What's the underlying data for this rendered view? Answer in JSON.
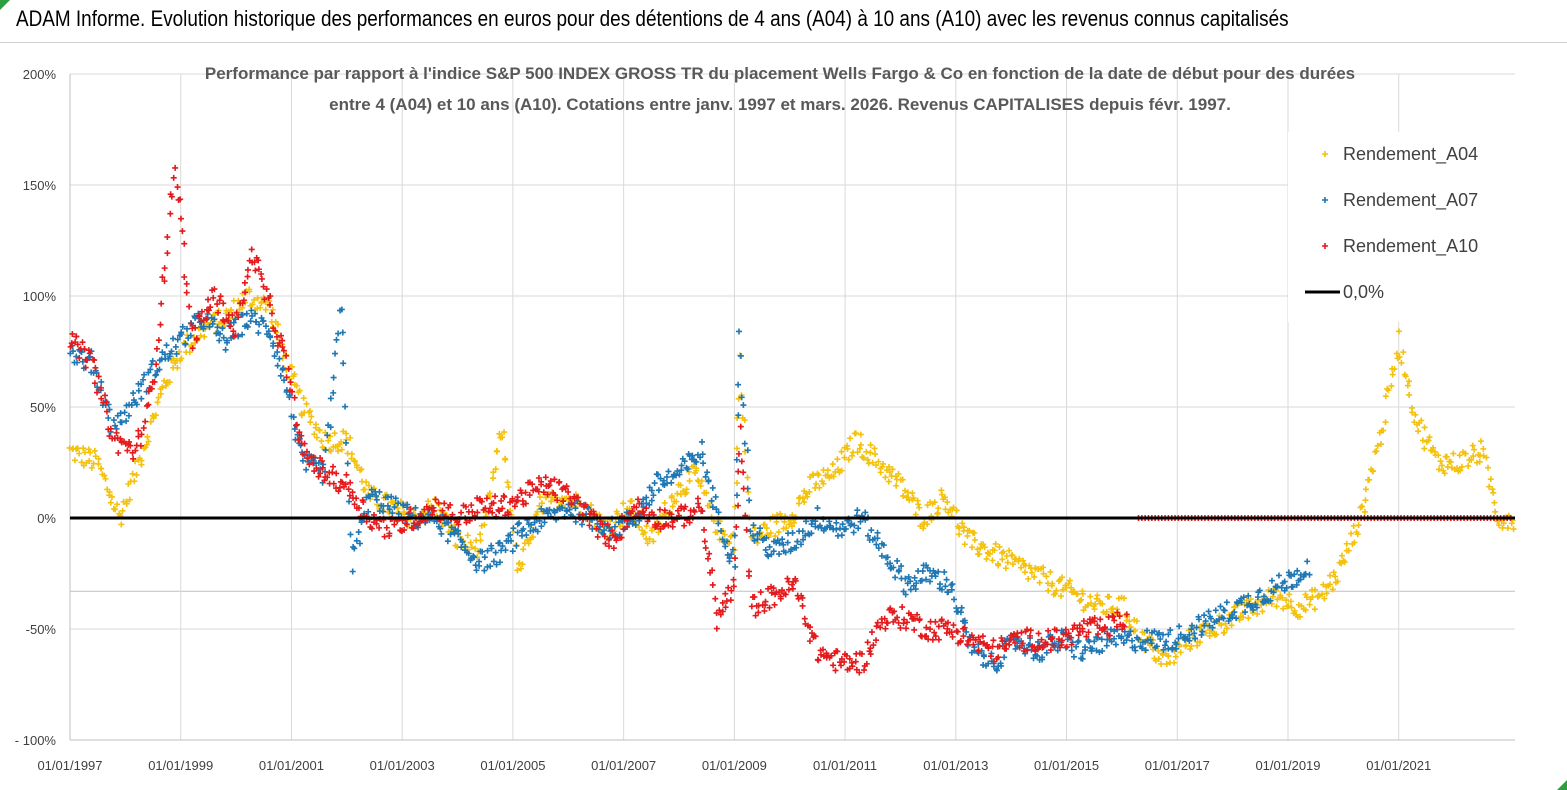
{
  "banner": {
    "title": "ADAM Informe. Evolution historique des performances en euros pour des détentions de 4 ans (A04) à 10 ans (A10) avec les revenus connus capitalisés",
    "background": "#ffffff"
  },
  "chart_data": {
    "type": "scatter",
    "title_line1": "Performance par rapport à l'indice S&P 500 INDEX GROSS TR  du placement Wells Fargo & Co en fonction de la date de début pour des durées",
    "title_line2": "entre 4 (A04) et 10 ans (A10). Cotations entre janv. 1997 et mars. 2026. Revenus CAPITALISES depuis févr. 1997.",
    "x_tick_labels": [
      "01/01/1997",
      "01/01/1999",
      "01/01/2001",
      "01/01/2003",
      "01/01/2005",
      "01/01/2007",
      "01/01/2009",
      "01/01/2011",
      "01/01/2013",
      "01/01/2015",
      "01/01/2017",
      "01/01/2019",
      "01/01/2021"
    ],
    "y_tick_labels": [
      "- 100%",
      "-50%",
      "0%",
      "50%",
      "100%",
      "150%",
      "200%"
    ],
    "ylim": [
      -100,
      200
    ],
    "xlim": [
      1997.0,
      2023.1
    ],
    "grid": "vertical and horizontal",
    "legend_position": "top-right",
    "colors": {
      "A04": "#f4c20d",
      "A07": "#1f77b4",
      "A10": "#e41a1c",
      "zero": "#000000"
    },
    "series": [
      {
        "name": "Rendement_A04",
        "points": [
          [
            1997.0,
            30
          ],
          [
            1997.5,
            25
          ],
          [
            1997.9,
            0
          ],
          [
            1998.3,
            30
          ],
          [
            1998.7,
            60
          ],
          [
            1999.0,
            75
          ],
          [
            1999.4,
            85
          ],
          [
            1999.8,
            90
          ],
          [
            2000.2,
            100
          ],
          [
            2000.6,
            95
          ],
          [
            2000.9,
            70
          ],
          [
            2001.2,
            50
          ],
          [
            2001.6,
            35
          ],
          [
            2002.0,
            35
          ],
          [
            2002.4,
            10
          ],
          [
            2002.8,
            5
          ],
          [
            2003.2,
            0
          ],
          [
            2003.6,
            5
          ],
          [
            2004.0,
            -10
          ],
          [
            2004.4,
            -15
          ],
          [
            2004.8,
            40
          ],
          [
            2005.1,
            -25
          ],
          [
            2005.5,
            5
          ],
          [
            2005.9,
            10
          ],
          [
            2006.3,
            5
          ],
          [
            2006.7,
            -5
          ],
          [
            2007.1,
            5
          ],
          [
            2007.5,
            -10
          ],
          [
            2007.9,
            10
          ],
          [
            2008.3,
            20
          ],
          [
            2008.7,
            -5
          ],
          [
            2009.0,
            -10
          ],
          [
            2009.1,
            70
          ],
          [
            2009.3,
            -10
          ],
          [
            2009.6,
            -5
          ],
          [
            2010.0,
            0
          ],
          [
            2010.4,
            15
          ],
          [
            2010.8,
            20
          ],
          [
            2011.2,
            35
          ],
          [
            2011.6,
            25
          ],
          [
            2012.0,
            15
          ],
          [
            2012.4,
            0
          ],
          [
            2012.8,
            10
          ],
          [
            2013.2,
            -10
          ],
          [
            2013.6,
            -15
          ],
          [
            2014.0,
            -20
          ],
          [
            2014.4,
            -25
          ],
          [
            2014.8,
            -30
          ],
          [
            2015.2,
            -35
          ],
          [
            2015.6,
            -40
          ],
          [
            2016.0,
            -40
          ],
          [
            2016.4,
            -55
          ],
          [
            2016.8,
            -65
          ],
          [
            2017.2,
            -55
          ],
          [
            2017.6,
            -50
          ],
          [
            2018.0,
            -45
          ],
          [
            2018.4,
            -40
          ],
          [
            2018.8,
            -35
          ],
          [
            2019.2,
            -40
          ],
          [
            2019.6,
            -35
          ],
          [
            2019.9,
            -25
          ],
          [
            2020.3,
            0
          ],
          [
            2020.7,
            40
          ],
          [
            2021.0,
            80
          ],
          [
            2021.3,
            45
          ],
          [
            2021.7,
            25
          ],
          [
            2022.1,
            25
          ],
          [
            2022.5,
            30
          ],
          [
            2022.8,
            0
          ],
          [
            2023.1,
            0
          ]
        ]
      },
      {
        "name": "Rendement_A07",
        "points": [
          [
            1997.0,
            75
          ],
          [
            1997.4,
            70
          ],
          [
            1997.8,
            40
          ],
          [
            1998.2,
            55
          ],
          [
            1998.6,
            70
          ],
          [
            1999.0,
            80
          ],
          [
            1999.4,
            90
          ],
          [
            1999.8,
            80
          ],
          [
            2000.2,
            90
          ],
          [
            2000.6,
            85
          ],
          [
            2000.9,
            60
          ],
          [
            2001.2,
            25
          ],
          [
            2001.6,
            20
          ],
          [
            2001.9,
            95
          ],
          [
            2002.1,
            -20
          ],
          [
            2002.4,
            10
          ],
          [
            2002.8,
            5
          ],
          [
            2003.2,
            0
          ],
          [
            2003.6,
            0
          ],
          [
            2004.0,
            -10
          ],
          [
            2004.4,
            -20
          ],
          [
            2004.8,
            -15
          ],
          [
            2005.2,
            -5
          ],
          [
            2005.6,
            0
          ],
          [
            2006.0,
            5
          ],
          [
            2006.4,
            0
          ],
          [
            2006.8,
            -5
          ],
          [
            2007.2,
            0
          ],
          [
            2007.6,
            15
          ],
          [
            2008.0,
            20
          ],
          [
            2008.4,
            30
          ],
          [
            2008.7,
            0
          ],
          [
            2009.0,
            -20
          ],
          [
            2009.1,
            80
          ],
          [
            2009.3,
            -5
          ],
          [
            2009.7,
            -15
          ],
          [
            2010.1,
            -10
          ],
          [
            2010.5,
            0
          ],
          [
            2010.9,
            -5
          ],
          [
            2011.3,
            0
          ],
          [
            2011.7,
            -15
          ],
          [
            2012.1,
            -30
          ],
          [
            2012.5,
            -25
          ],
          [
            2012.9,
            -30
          ],
          [
            2013.3,
            -60
          ],
          [
            2013.7,
            -65
          ],
          [
            2014.1,
            -55
          ],
          [
            2014.5,
            -60
          ],
          [
            2014.9,
            -55
          ],
          [
            2015.3,
            -60
          ],
          [
            2015.7,
            -55
          ],
          [
            2016.1,
            -55
          ],
          [
            2016.5,
            -55
          ],
          [
            2016.9,
            -55
          ],
          [
            2017.3,
            -50
          ],
          [
            2017.7,
            -45
          ],
          [
            2018.1,
            -40
          ],
          [
            2018.5,
            -35
          ],
          [
            2018.9,
            -30
          ],
          [
            2019.2,
            -25
          ],
          [
            2019.4,
            -20
          ]
        ]
      },
      {
        "name": "Rendement_A10",
        "points": [
          [
            1997.0,
            80
          ],
          [
            1997.4,
            70
          ],
          [
            1997.8,
            35
          ],
          [
            1998.2,
            30
          ],
          [
            1998.5,
            60
          ],
          [
            1998.9,
            160
          ],
          [
            1999.2,
            80
          ],
          [
            1999.6,
            100
          ],
          [
            2000.0,
            85
          ],
          [
            2000.3,
            120
          ],
          [
            2000.6,
            95
          ],
          [
            2000.9,
            70
          ],
          [
            2001.2,
            30
          ],
          [
            2001.6,
            20
          ],
          [
            2002.0,
            15
          ],
          [
            2002.4,
            0
          ],
          [
            2002.8,
            -5
          ],
          [
            2003.2,
            0
          ],
          [
            2003.6,
            5
          ],
          [
            2004.0,
            0
          ],
          [
            2004.4,
            5
          ],
          [
            2004.8,
            5
          ],
          [
            2005.2,
            10
          ],
          [
            2005.6,
            15
          ],
          [
            2006.0,
            10
          ],
          [
            2006.4,
            0
          ],
          [
            2006.8,
            -10
          ],
          [
            2007.2,
            5
          ],
          [
            2007.6,
            0
          ],
          [
            2008.0,
            0
          ],
          [
            2008.4,
            5
          ],
          [
            2008.7,
            -45
          ],
          [
            2009.0,
            -30
          ],
          [
            2009.1,
            40
          ],
          [
            2009.3,
            -40
          ],
          [
            2009.7,
            -35
          ],
          [
            2010.1,
            -30
          ],
          [
            2010.5,
            -60
          ],
          [
            2010.9,
            -65
          ],
          [
            2011.3,
            -65
          ],
          [
            2011.7,
            -45
          ],
          [
            2012.1,
            -45
          ],
          [
            2012.5,
            -50
          ],
          [
            2012.9,
            -50
          ],
          [
            2013.3,
            -55
          ],
          [
            2013.7,
            -60
          ],
          [
            2014.1,
            -55
          ],
          [
            2014.5,
            -55
          ],
          [
            2014.9,
            -55
          ],
          [
            2015.3,
            -50
          ],
          [
            2015.7,
            -50
          ],
          [
            2016.1,
            -45
          ]
        ]
      },
      {
        "name": "0,0%",
        "points": [
          [
            1997.0,
            0
          ],
          [
            2023.1,
            0
          ]
        ]
      }
    ],
    "legend": [
      "Rendement_A04",
      "Rendement_A07",
      "Rendement_A10",
      "0,0%"
    ]
  }
}
